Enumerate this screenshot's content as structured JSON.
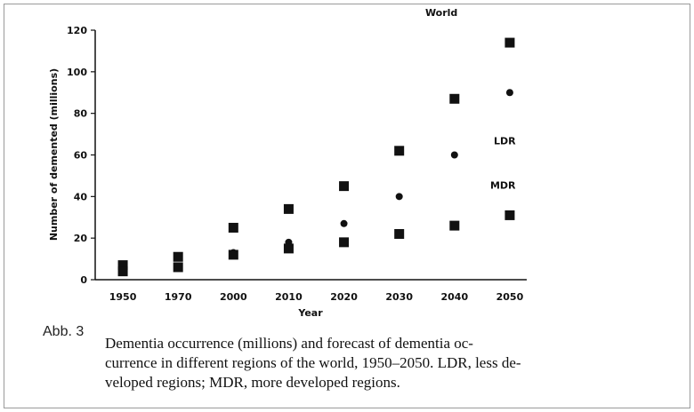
{
  "chart_data": {
    "type": "line",
    "ylabel": "Number of demented (millions)",
    "xlabel": "Year",
    "categories": [
      "1950",
      "1970",
      "2000",
      "2010",
      "2020",
      "2030",
      "2040",
      "2050"
    ],
    "series": [
      {
        "name": "World",
        "color": "#111111",
        "marker": "square",
        "values": [
          7,
          11,
          25,
          34,
          45,
          62,
          87,
          114
        ]
      },
      {
        "name": "LDR",
        "color": "#111111",
        "marker": "circle",
        "values": [
          4,
          6,
          13,
          18,
          27,
          40,
          60,
          90
        ]
      },
      {
        "name": "MDR",
        "color": "#111111",
        "marker": "square",
        "values": [
          4,
          6,
          12,
          15,
          18,
          22,
          26,
          31
        ]
      }
    ],
    "ylim": [
      0,
      120
    ],
    "yticks": [
      0,
      20,
      40,
      60,
      80,
      100,
      120
    ],
    "grid": false
  },
  "caption": {
    "label": "Abb. 3",
    "lines": [
      "Dementia occurrence (millions) and forecast of dementia oc-",
      "currence in different regions of the world, 1950–2050. LDR, less de-",
      "veloped regions; MDR, more developed regions."
    ]
  }
}
